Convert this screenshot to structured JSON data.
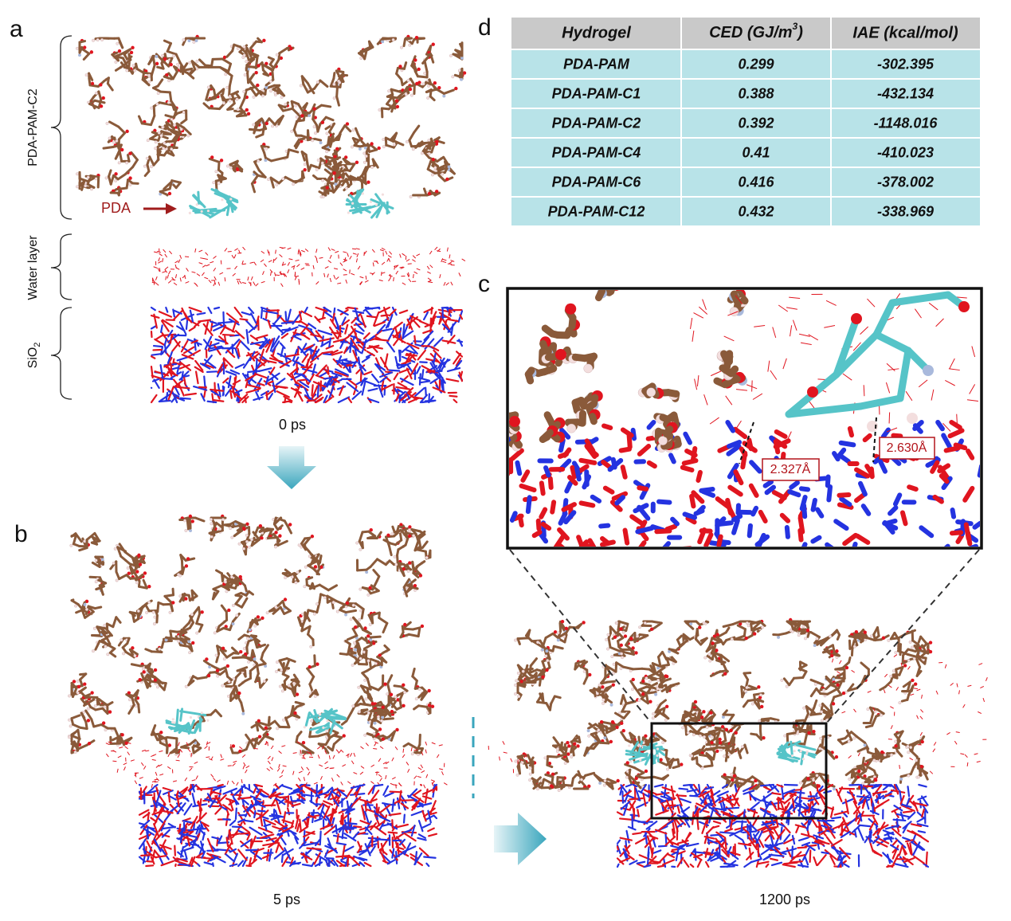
{
  "panels": {
    "a": "a",
    "b": "b",
    "c": "c",
    "d": "d"
  },
  "panel_a": {
    "polymer_label": "PDA-PAM-C2",
    "water_label": "Water layer",
    "substrate_label": {
      "main": "SiO",
      "sub": "2"
    },
    "pda_label": "PDA",
    "time": "0 ps"
  },
  "panel_b": {
    "time_left": "5 ps",
    "time_right": "1200 ps"
  },
  "panel_c": {
    "distances": [
      "2.327Å",
      "2.630Å"
    ]
  },
  "table": {
    "header": [
      "Hydrogel",
      {
        "main": "CED (GJ/m",
        "sup": "3",
        "tail": ")"
      },
      "IAE (kcal/mol)"
    ],
    "rows": [
      [
        "PDA-PAM",
        "0.299",
        "-302.395"
      ],
      [
        "PDA-PAM-C1",
        "0.388",
        "-432.134"
      ],
      [
        "PDA-PAM-C2",
        "0.392",
        "-1148.016"
      ],
      [
        "PDA-PAM-C4",
        "0.41",
        "-410.023"
      ],
      [
        "PDA-PAM-C6",
        "0.416",
        "-378.002"
      ],
      [
        "PDA-PAM-C12",
        "0.432",
        "-338.969"
      ]
    ]
  }
}
